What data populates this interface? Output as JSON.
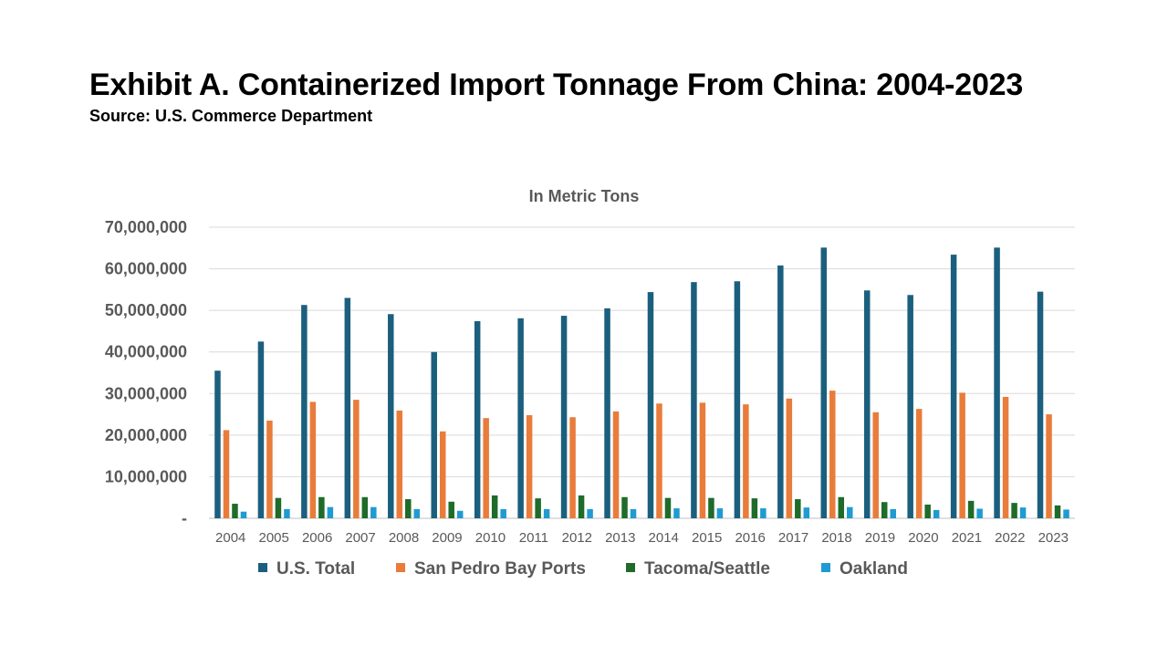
{
  "page": {
    "title": "Exhibit A. Containerized Import Tonnage From China: 2004-2023",
    "subtitle": "Source: U.S. Commerce Department"
  },
  "chart_data": {
    "type": "bar",
    "title": "In Metric Tons",
    "xlabel": "",
    "ylabel": "",
    "ylim": [
      0,
      70000000
    ],
    "yticks": [
      0,
      10000000,
      20000000,
      30000000,
      40000000,
      50000000,
      60000000,
      70000000
    ],
    "ytick_labels": [
      "-",
      "10,000,000",
      "20,000,000",
      "30,000,000",
      "40,000,000",
      "50,000,000",
      "60,000,000",
      "70,000,000"
    ],
    "grid": true,
    "legend": "bottom",
    "categories": [
      "2004",
      "2005",
      "2006",
      "2007",
      "2008",
      "2009",
      "2010",
      "2011",
      "2012",
      "2013",
      "2014",
      "2015",
      "2016",
      "2017",
      "2018",
      "2019",
      "2020",
      "2021",
      "2022",
      "2023"
    ],
    "series": [
      {
        "name": "U.S. Total",
        "color": "#1b5f7e",
        "values": [
          35500000,
          42500000,
          51300000,
          53000000,
          49100000,
          40000000,
          47400000,
          48100000,
          48700000,
          50500000,
          54400000,
          56800000,
          57000000,
          60800000,
          65100000,
          54800000,
          53700000,
          63400000,
          65100000,
          54500000
        ]
      },
      {
        "name": "San Pedro Bay Ports",
        "color": "#e97c3a",
        "values": [
          21200000,
          23500000,
          28000000,
          28500000,
          25900000,
          20900000,
          24100000,
          24800000,
          24300000,
          25700000,
          27600000,
          27800000,
          27400000,
          28800000,
          30700000,
          25500000,
          26300000,
          30200000,
          29200000,
          25000000
        ]
      },
      {
        "name": "Tacoma/Seattle",
        "color": "#1e6b2a",
        "values": [
          3500000,
          4900000,
          5100000,
          5100000,
          4600000,
          4000000,
          5500000,
          4800000,
          5500000,
          5100000,
          4900000,
          4900000,
          4800000,
          4600000,
          5100000,
          3900000,
          3300000,
          4200000,
          3700000,
          3100000
        ]
      },
      {
        "name": "Oakland",
        "color": "#1f9bd1",
        "values": [
          1600000,
          2200000,
          2700000,
          2700000,
          2200000,
          1800000,
          2200000,
          2200000,
          2200000,
          2200000,
          2400000,
          2400000,
          2400000,
          2600000,
          2700000,
          2200000,
          2000000,
          2300000,
          2600000,
          2100000
        ]
      }
    ]
  }
}
